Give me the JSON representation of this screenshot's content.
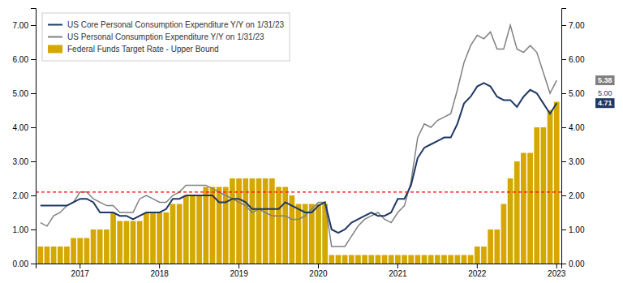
{
  "chart_data": {
    "type": "bar",
    "categories": [
      null,
      null,
      null,
      null,
      null,
      null,
      "2017",
      null,
      null,
      null,
      null,
      null,
      null,
      null,
      null,
      null,
      null,
      null,
      "2018",
      null,
      null,
      null,
      null,
      null,
      null,
      null,
      null,
      null,
      null,
      null,
      "2019",
      null,
      null,
      null,
      null,
      null,
      null,
      null,
      null,
      null,
      null,
      null,
      "2020",
      null,
      null,
      null,
      null,
      null,
      null,
      null,
      null,
      null,
      null,
      null,
      "2021",
      null,
      null,
      null,
      null,
      null,
      null,
      null,
      null,
      null,
      null,
      null,
      "2022",
      null,
      null,
      null,
      null,
      null,
      null,
      null,
      null,
      null,
      null,
      null,
      "2023"
    ],
    "series": [
      {
        "name": "US Core Personal Consumption Expenditure Y/Y on 1/31/23",
        "type": "line",
        "color": "#1f3864",
        "values": [
          1.7,
          1.7,
          1.7,
          1.7,
          1.7,
          1.8,
          1.9,
          1.9,
          1.8,
          1.5,
          1.5,
          1.5,
          1.4,
          1.4,
          1.3,
          1.4,
          1.5,
          1.5,
          1.5,
          1.6,
          1.9,
          1.9,
          2.0,
          2.0,
          2.0,
          2.0,
          2.0,
          1.8,
          1.8,
          1.9,
          1.9,
          1.8,
          1.6,
          1.6,
          1.6,
          1.6,
          1.6,
          1.8,
          1.7,
          1.6,
          1.5,
          1.5,
          1.7,
          1.8,
          1.0,
          0.9,
          1.0,
          1.2,
          1.3,
          1.4,
          1.5,
          1.4,
          1.4,
          1.5,
          1.9,
          1.9,
          2.3,
          3.1,
          3.4,
          3.5,
          3.6,
          3.7,
          3.7,
          4.1,
          4.7,
          4.9,
          5.2,
          5.3,
          5.2,
          4.9,
          4.8,
          4.8,
          4.6,
          4.9,
          5.1,
          5.0,
          4.7,
          4.4,
          4.71
        ]
      },
      {
        "name": "US Personal Consumption Expenditure Y/Y on 1/31/23",
        "type": "line",
        "color": "#808080",
        "values": [
          1.2,
          1.1,
          1.4,
          1.5,
          1.7,
          1.8,
          2.1,
          2.1,
          1.9,
          1.8,
          1.7,
          1.7,
          1.5,
          1.5,
          1.5,
          1.9,
          2.0,
          1.9,
          1.8,
          1.8,
          2.0,
          2.1,
          2.3,
          2.3,
          2.3,
          2.3,
          2.2,
          2.1,
          2.0,
          1.9,
          1.8,
          1.7,
          1.5,
          1.6,
          1.5,
          1.4,
          1.4,
          1.4,
          1.3,
          1.3,
          1.4,
          1.6,
          1.8,
          1.8,
          0.5,
          0.5,
          0.5,
          0.8,
          1.1,
          1.3,
          1.4,
          1.5,
          1.3,
          1.2,
          1.5,
          1.7,
          2.4,
          3.7,
          4.1,
          4.0,
          4.2,
          4.3,
          4.4,
          5.1,
          5.9,
          6.4,
          6.7,
          6.6,
          6.8,
          6.3,
          6.3,
          7.0,
          6.3,
          6.2,
          6.4,
          6.2,
          5.6,
          5.0,
          5.38
        ]
      },
      {
        "name": "Federal Funds Target Rate - Upper Bound",
        "type": "bar",
        "color": "#d4a800",
        "values": [
          0.5,
          0.5,
          0.5,
          0.5,
          0.5,
          0.75,
          0.75,
          0.75,
          1.0,
          1.0,
          1.0,
          1.5,
          1.25,
          1.25,
          1.25,
          1.25,
          1.5,
          1.5,
          1.5,
          1.5,
          1.75,
          1.75,
          2.0,
          2.0,
          2.0,
          2.25,
          2.25,
          2.25,
          2.25,
          2.5,
          2.5,
          2.5,
          2.5,
          2.5,
          2.5,
          2.5,
          2.25,
          2.25,
          2.0,
          1.75,
          1.75,
          1.75,
          1.75,
          1.75,
          0.25,
          0.25,
          0.25,
          0.25,
          0.25,
          0.25,
          0.25,
          0.25,
          0.25,
          0.25,
          0.25,
          0.25,
          0.25,
          0.25,
          0.25,
          0.25,
          0.25,
          0.25,
          0.25,
          0.25,
          0.25,
          0.25,
          0.5,
          0.5,
          1.0,
          1.0,
          1.75,
          2.5,
          3.0,
          3.25,
          3.25,
          4.0,
          4.0,
          4.5,
          4.75
        ]
      }
    ],
    "ylim": [
      0.0,
      7.5
    ],
    "yticks": [
      {
        "value": 0.0,
        "label": "0.00"
      },
      {
        "value": 1.0,
        "label": "1.00"
      },
      {
        "value": 2.0,
        "label": "2.00"
      },
      {
        "value": 3.0,
        "label": "3.00"
      },
      {
        "value": 4.0,
        "label": "4.00"
      },
      {
        "value": 5.0,
        "label": "5.00"
      },
      {
        "value": 6.0,
        "label": "6.00"
      },
      {
        "value": 7.0,
        "label": "7.00"
      }
    ],
    "y2lim": [
      0.0,
      7.5
    ],
    "y2ticks": [
      {
        "value": 0.0,
        "label": "0.00"
      },
      {
        "value": 1.0,
        "label": "1.00"
      },
      {
        "value": 2.0,
        "label": "2.00"
      },
      {
        "value": 3.0,
        "label": "3.00"
      },
      {
        "value": 4.0,
        "label": "4.00"
      },
      {
        "value": 5.0,
        "label": "5.00"
      },
      {
        "value": 6.0,
        "label": "6.00"
      },
      {
        "value": 7.0,
        "label": "7.00"
      }
    ],
    "reference_lines": [
      {
        "value": 2.1,
        "color": "#ff0000",
        "line_style": "dashed"
      }
    ],
    "annotations": [
      {
        "text": "5.38",
        "y": 5.38,
        "background": "#7f7f7f"
      },
      {
        "text": "5.00",
        "y": 5.0,
        "color": "#1f3864"
      },
      {
        "text": "4.71",
        "y": 4.71,
        "background": "#1f3864"
      }
    ],
    "legend": "upper left",
    "grid": false
  }
}
